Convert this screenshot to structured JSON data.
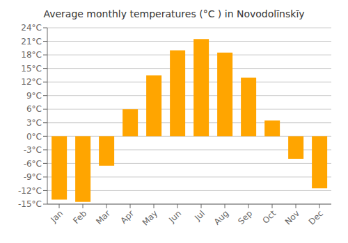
{
  "chart_data": {
    "type": "bar",
    "title": "Average monthly temperatures (°C ) in Novodolīnskīy",
    "categories": [
      "Jan",
      "Feb",
      "Mar",
      "Apr",
      "May",
      "Jun",
      "Jul",
      "Aug",
      "Sep",
      "Oct",
      "Nov",
      "Dec"
    ],
    "values": [
      -14,
      -14.5,
      -6.5,
      6,
      13.5,
      19,
      21.5,
      18.5,
      13,
      3.5,
      -5,
      -11.5
    ],
    "color": "#FFA500",
    "ylim": [
      -15,
      24
    ],
    "yticks": [
      {
        "value": -15,
        "label": "-15°C"
      },
      {
        "value": -12,
        "label": "-12°C"
      },
      {
        "value": -9,
        "label": "-9°C"
      },
      {
        "value": -6,
        "label": "-6°C"
      },
      {
        "value": -3,
        "label": "-3°C"
      },
      {
        "value": 0,
        "label": "0°C"
      },
      {
        "value": 3,
        "label": "3°C"
      },
      {
        "value": 6,
        "label": "6°C"
      },
      {
        "value": 9,
        "label": "9°C"
      },
      {
        "value": 12,
        "label": "12°C"
      },
      {
        "value": 15,
        "label": "15°C"
      },
      {
        "value": 18,
        "label": "18°C"
      },
      {
        "value": 21,
        "label": "21°C"
      },
      {
        "value": 24,
        "label": "24°C"
      }
    ],
    "grid": true
  }
}
